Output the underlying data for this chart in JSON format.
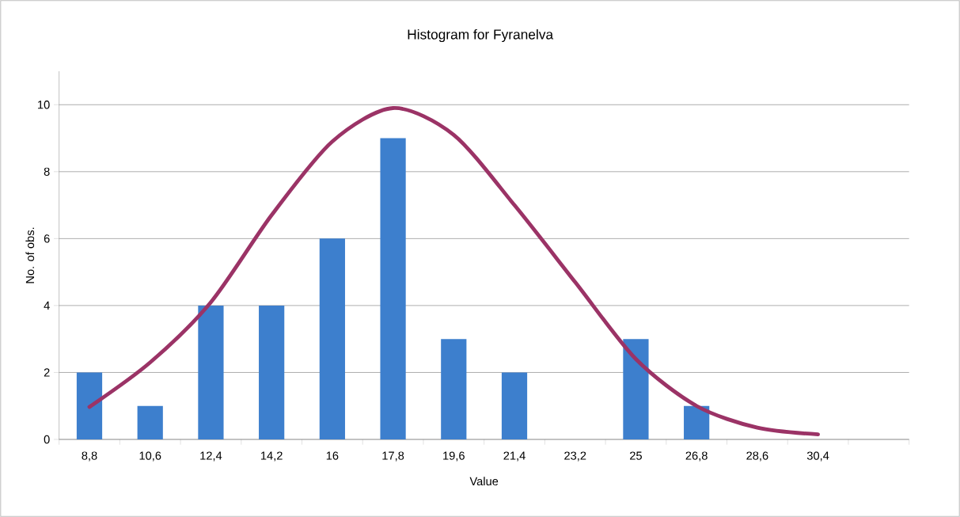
{
  "chart_data": {
    "type": "bar",
    "title": "Histogram for Fyranelva",
    "xlabel": "Value",
    "ylabel": "No. of obs.",
    "categories": [
      "8,8",
      "10,6",
      "12,4",
      "14,2",
      "16",
      "17,8",
      "19,6",
      "21,4",
      "23,2",
      "25",
      "26,8",
      "28,6",
      "30,4",
      null
    ],
    "series": [
      {
        "color": "#3d7fcd",
        "values": [
          2,
          1,
          4,
          4,
          6,
          9,
          3,
          2,
          0,
          3,
          1,
          0,
          0,
          null
        ]
      },
      {
        "type": "line",
        "color": "#9b3366",
        "values": [
          0.97,
          2.3,
          4.1,
          6.7,
          8.9,
          9.9,
          9.1,
          7.0,
          4.7,
          2.4,
          1.0,
          0.35,
          0.15,
          null
        ]
      }
    ],
    "ylim": [
      0,
      11
    ],
    "yticks": [
      0,
      2,
      4,
      6,
      8,
      10
    ],
    "grid": "y",
    "marker": "none",
    "line_style": "solid"
  }
}
